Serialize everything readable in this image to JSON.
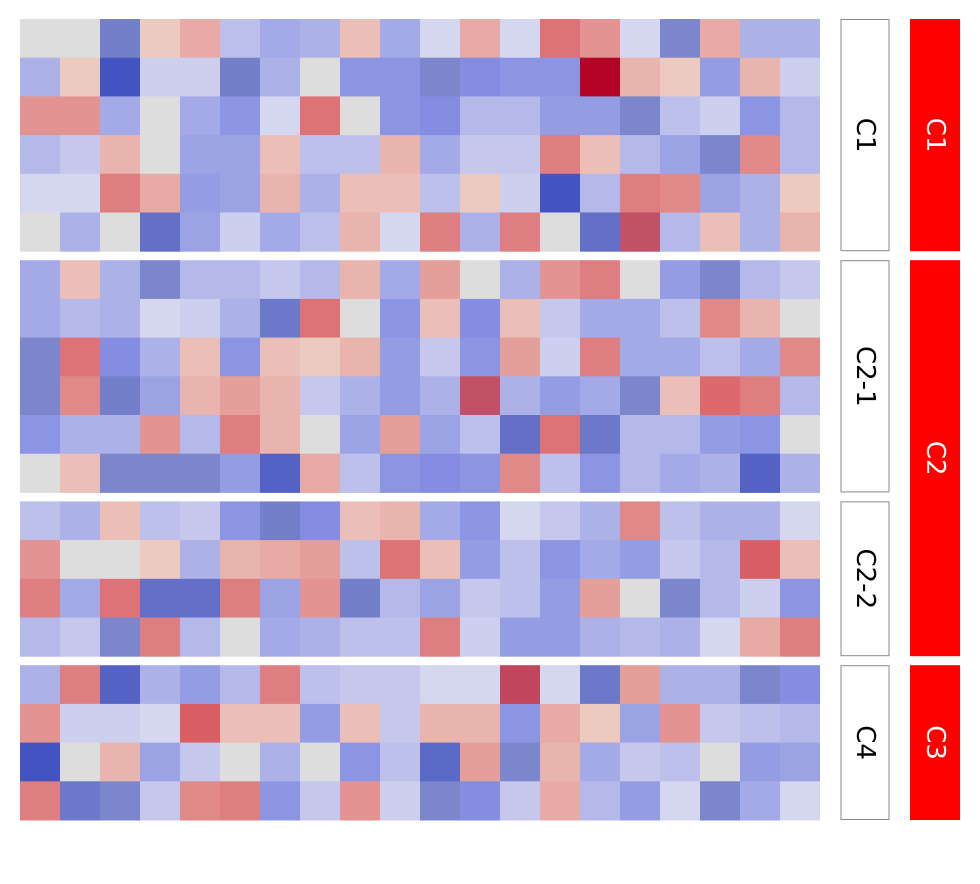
{
  "chart_data": {
    "type": "heatmap",
    "title": "",
    "xlabel": "",
    "ylabel": "",
    "colormap": {
      "low": "#3b4cc0",
      "mid": "#dddddd",
      "high": "#b40426"
    },
    "value_range": [
      -1,
      1
    ],
    "columns": 20,
    "row_groups": [
      {
        "label": "C1",
        "group": "C1",
        "rows": 6
      },
      {
        "label": "C2-1",
        "group": "C2",
        "rows": 6
      },
      {
        "label": "C2-2",
        "group": "C2",
        "rows": 4
      },
      {
        "label": "C4",
        "group": "C3",
        "rows": 4
      }
    ],
    "outer_groups": [
      {
        "label": "C1",
        "color": "#ff0000"
      },
      {
        "label": "C2",
        "color": "#ff0000"
      },
      {
        "label": "C3",
        "color": "#ff0000"
      }
    ],
    "values": [
      [
        0.0,
        0.0,
        -0.65,
        0.05,
        0.2,
        -0.2,
        -0.35,
        -0.3,
        0.1,
        -0.35,
        -0.05,
        0.2,
        -0.05,
        0.45,
        0.3,
        -0.05,
        -0.6,
        0.2,
        -0.3,
        -0.3
      ],
      [
        -0.3,
        0.05,
        -0.95,
        -0.1,
        -0.1,
        -0.65,
        -0.3,
        0.0,
        -0.5,
        -0.5,
        -0.6,
        -0.55,
        -0.5,
        -0.5,
        1.0,
        0.15,
        0.05,
        -0.45,
        0.15,
        -0.1
      ],
      [
        0.3,
        0.3,
        -0.35,
        0.0,
        -0.35,
        -0.5,
        -0.05,
        0.45,
        0.0,
        -0.5,
        -0.55,
        -0.25,
        -0.25,
        -0.45,
        -0.45,
        -0.6,
        -0.2,
        -0.1,
        -0.5,
        -0.25
      ],
      [
        -0.25,
        -0.15,
        0.15,
        0.0,
        -0.4,
        -0.4,
        0.1,
        -0.2,
        -0.2,
        0.15,
        -0.35,
        -0.15,
        -0.15,
        0.4,
        0.1,
        -0.25,
        -0.4,
        -0.6,
        0.35,
        -0.25
      ],
      [
        -0.05,
        -0.05,
        0.4,
        0.2,
        -0.45,
        -0.4,
        0.15,
        -0.3,
        0.1,
        0.1,
        -0.2,
        0.05,
        -0.1,
        -0.95,
        -0.25,
        0.4,
        0.35,
        -0.4,
        -0.3,
        0.05
      ],
      [
        0.0,
        -0.3,
        0.0,
        -0.75,
        -0.4,
        -0.1,
        -0.35,
        -0.2,
        0.15,
        -0.05,
        0.4,
        -0.3,
        0.4,
        0.0,
        -0.75,
        0.65,
        -0.25,
        0.1,
        -0.3,
        0.15
      ],
      [
        -0.35,
        0.1,
        -0.3,
        -0.6,
        -0.25,
        -0.25,
        -0.15,
        -0.25,
        0.15,
        -0.35,
        0.25,
        0.0,
        -0.3,
        0.3,
        0.4,
        0.0,
        -0.45,
        -0.6,
        -0.25,
        -0.15
      ],
      [
        -0.35,
        -0.25,
        -0.3,
        -0.05,
        -0.1,
        -0.3,
        -0.7,
        0.45,
        0.0,
        -0.5,
        0.1,
        -0.55,
        0.1,
        -0.15,
        -0.35,
        -0.35,
        -0.2,
        0.35,
        0.15,
        0.0
      ],
      [
        -0.6,
        0.45,
        -0.55,
        -0.3,
        0.1,
        -0.5,
        0.1,
        0.05,
        0.15,
        -0.45,
        -0.15,
        -0.5,
        0.25,
        -0.1,
        0.4,
        -0.35,
        -0.35,
        -0.2,
        -0.35,
        0.35
      ],
      [
        -0.6,
        0.35,
        -0.65,
        -0.4,
        0.15,
        0.25,
        0.15,
        -0.15,
        -0.3,
        -0.45,
        -0.3,
        0.65,
        -0.3,
        -0.45,
        -0.35,
        -0.6,
        0.1,
        0.5,
        0.4,
        -0.25
      ],
      [
        -0.5,
        -0.3,
        -0.3,
        0.3,
        -0.25,
        0.4,
        0.15,
        0.0,
        -0.4,
        0.25,
        -0.4,
        -0.2,
        -0.75,
        0.45,
        -0.7,
        -0.25,
        -0.25,
        -0.45,
        -0.5,
        0.0
      ],
      [
        0.0,
        0.1,
        -0.6,
        -0.6,
        -0.6,
        -0.45,
        -0.85,
        0.2,
        -0.2,
        -0.5,
        -0.55,
        -0.5,
        0.35,
        -0.2,
        -0.5,
        -0.25,
        -0.35,
        -0.3,
        -0.85,
        -0.3
      ],
      [
        -0.2,
        -0.3,
        0.1,
        -0.2,
        -0.15,
        -0.5,
        -0.65,
        -0.55,
        0.1,
        0.15,
        -0.35,
        -0.5,
        -0.05,
        -0.15,
        -0.3,
        0.35,
        -0.2,
        -0.3,
        -0.3,
        -0.05
      ],
      [
        0.3,
        0.0,
        0.0,
        0.05,
        -0.3,
        0.15,
        0.2,
        0.25,
        -0.2,
        0.45,
        0.1,
        -0.45,
        -0.2,
        -0.5,
        -0.35,
        -0.45,
        -0.15,
        -0.25,
        0.55,
        0.1
      ],
      [
        0.4,
        -0.35,
        0.45,
        -0.75,
        -0.75,
        0.4,
        -0.4,
        0.3,
        -0.65,
        -0.25,
        -0.4,
        -0.15,
        -0.2,
        -0.45,
        0.25,
        0.0,
        -0.6,
        -0.25,
        -0.1,
        -0.5
      ],
      [
        -0.25,
        -0.15,
        -0.6,
        0.4,
        -0.25,
        0.0,
        -0.35,
        -0.3,
        -0.2,
        -0.2,
        0.4,
        -0.1,
        -0.45,
        -0.45,
        -0.3,
        -0.25,
        -0.3,
        -0.05,
        0.2,
        0.4
      ],
      [
        -0.3,
        0.4,
        -0.85,
        -0.3,
        -0.45,
        -0.25,
        0.4,
        -0.2,
        -0.15,
        -0.15,
        -0.05,
        -0.05,
        0.7,
        -0.05,
        -0.7,
        0.25,
        -0.3,
        -0.3,
        -0.6,
        -0.55
      ],
      [
        0.3,
        -0.1,
        -0.1,
        -0.05,
        0.55,
        0.1,
        0.1,
        -0.45,
        0.1,
        -0.15,
        0.15,
        0.15,
        -0.5,
        0.2,
        0.05,
        -0.4,
        0.3,
        -0.15,
        -0.2,
        -0.25
      ],
      [
        -0.95,
        0.0,
        0.15,
        -0.4,
        -0.15,
        0.0,
        -0.3,
        0.0,
        -0.5,
        -0.2,
        -0.8,
        0.25,
        -0.6,
        0.15,
        -0.35,
        -0.15,
        -0.2,
        0.0,
        -0.45,
        -0.4
      ],
      [
        0.4,
        -0.7,
        -0.6,
        -0.15,
        0.35,
        0.4,
        -0.5,
        -0.15,
        0.3,
        -0.1,
        -0.6,
        -0.55,
        -0.15,
        0.2,
        -0.25,
        -0.45,
        -0.05,
        -0.6,
        -0.35,
        -0.05
      ]
    ]
  }
}
